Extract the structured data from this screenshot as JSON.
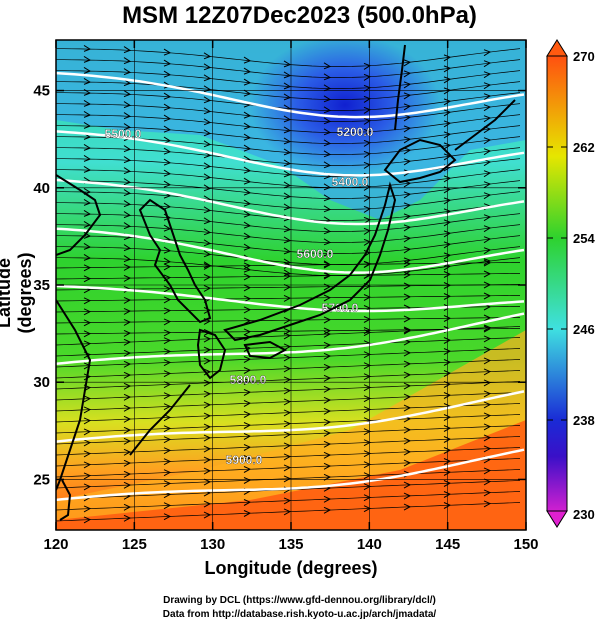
{
  "title": "MSM 12Z07Dec2023 (500.0hPa)",
  "x_axis_label": "Longitude (degrees)",
  "y_axis_label": "Latitude  (degrees)",
  "credit_line1": "Drawing by DCL (https://www.gfd-dennou.org/library/dcl/)",
  "credit_line2": "Data from http://database.rish.kyoto-u.ac.jp/arch/jmadata/",
  "map": {
    "lon_range": [
      120,
      150
    ],
    "lat_range": [
      22.4,
      47.6
    ],
    "lon_ticks": [
      "120",
      "125",
      "130",
      "135",
      "140",
      "145",
      "150"
    ],
    "lat_ticks": [
      "25",
      "30",
      "35",
      "40",
      "45"
    ],
    "contour_labels": [
      "5200.0",
      "5400.0",
      "5500.0",
      "5600.0",
      "5700.0",
      "5800.0",
      "5900.0"
    ],
    "colorbar_range": [
      230,
      270
    ],
    "colorbar_ticks": [
      "230",
      "238",
      "246",
      "254",
      "262",
      "270"
    ],
    "colors": {
      "deep_blue": "#1a2bd6",
      "cyan": "#3fe0e0",
      "green": "#2ed22e",
      "yellow": "#e6e600",
      "orange": "#ff7a10",
      "magenta": "#d020d0",
      "contour": "#ffffff",
      "coast": "#000000"
    }
  }
}
